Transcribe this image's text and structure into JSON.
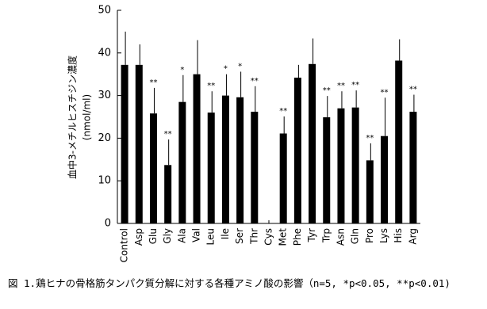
{
  "chart_data": {
    "type": "bar",
    "y_label": "血中3-メチルヒスチジン濃度",
    "y_unit": "(nmol/ml)",
    "caption": "図 1.鶏ヒナの骨格筋タンパク質分解に対する各種アミノ酸の影響（n=5, *p<0.05, **p<0.01)",
    "categories": [
      "Control",
      "Asp",
      "Glu",
      "Gly",
      "Ala",
      "Val",
      "Leu",
      "Ile",
      "Ser",
      "Thr",
      "Cys",
      "Met",
      "Phe",
      "Tyr",
      "Trp",
      "Asn",
      "Gln",
      "Pro",
      "Lys",
      "His",
      "Arg"
    ],
    "values": [
      37.2,
      37.2,
      25.8,
      13.7,
      28.5,
      35,
      26,
      30,
      29.6,
      26.2,
      null,
      21.1,
      34.2,
      37.4,
      24.9,
      27,
      27.2,
      14.8,
      20.5,
      38.2,
      26.2
    ],
    "errors": [
      7.8,
      4.8,
      6,
      6,
      6.3,
      8,
      5,
      5,
      6,
      6,
      null,
      4,
      3,
      6,
      5,
      4,
      4,
      4,
      9,
      5,
      4
    ],
    "significance": [
      null,
      null,
      "**",
      "**",
      "*",
      null,
      "**",
      "*",
      "*",
      "**",
      null,
      "**",
      null,
      null,
      "**",
      "**",
      "**",
      "**",
      "**",
      null,
      "**"
    ],
    "color": "#000000",
    "ylim": [
      0,
      50
    ],
    "yticks": [
      0,
      10,
      20,
      30,
      40,
      50
    ]
  }
}
